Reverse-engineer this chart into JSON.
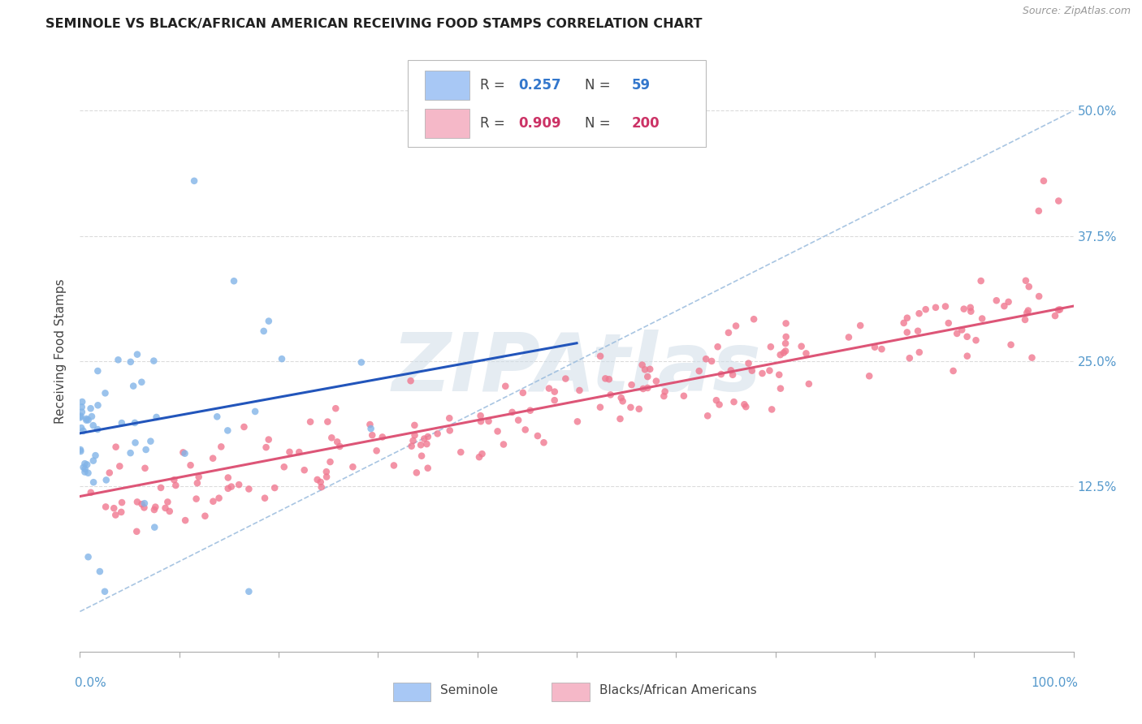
{
  "title": "SEMINOLE VS BLACK/AFRICAN AMERICAN RECEIVING FOOD STAMPS CORRELATION CHART",
  "source": "Source: ZipAtlas.com",
  "ylabel": "Receiving Food Stamps",
  "ytick_values": [
    0.125,
    0.25,
    0.375,
    0.5
  ],
  "ytick_labels": [
    "12.5%",
    "25.0%",
    "37.5%",
    "50.0%"
  ],
  "xlim": [
    0.0,
    1.0
  ],
  "ylim": [
    -0.04,
    0.56
  ],
  "seminole_color": "#82b4e8",
  "black_color": "#f07890",
  "seminole_line_color": "#2255bb",
  "black_line_color": "#dd5577",
  "ref_line_color": "#99bbdd",
  "legend_box_color": "#a8c8f5",
  "legend_pink_color": "#f5b8c8",
  "legend_text_blue": "#3377cc",
  "legend_text_pink": "#cc3366",
  "legend_text_dark": "#444444",
  "watermark": "ZIPAtlas",
  "watermark_color": "#d0dde8",
  "background_color": "#ffffff",
  "grid_color": "#cccccc",
  "axis_label_color": "#5599cc",
  "title_fontsize": 11.5,
  "source_fontsize": 9,
  "ytick_fontsize": 11,
  "xlabel_fontsize": 11,
  "legend_fontsize": 12,
  "seminole_R": 0.257,
  "seminole_N": 59,
  "black_R": 0.909,
  "black_N": 200,
  "blue_line_x0": 0.0,
  "blue_line_y0": 0.178,
  "blue_line_x1": 0.5,
  "blue_line_y1": 0.268,
  "pink_line_x0": 0.0,
  "pink_line_y0": 0.115,
  "pink_line_x1": 1.0,
  "pink_line_y1": 0.305
}
